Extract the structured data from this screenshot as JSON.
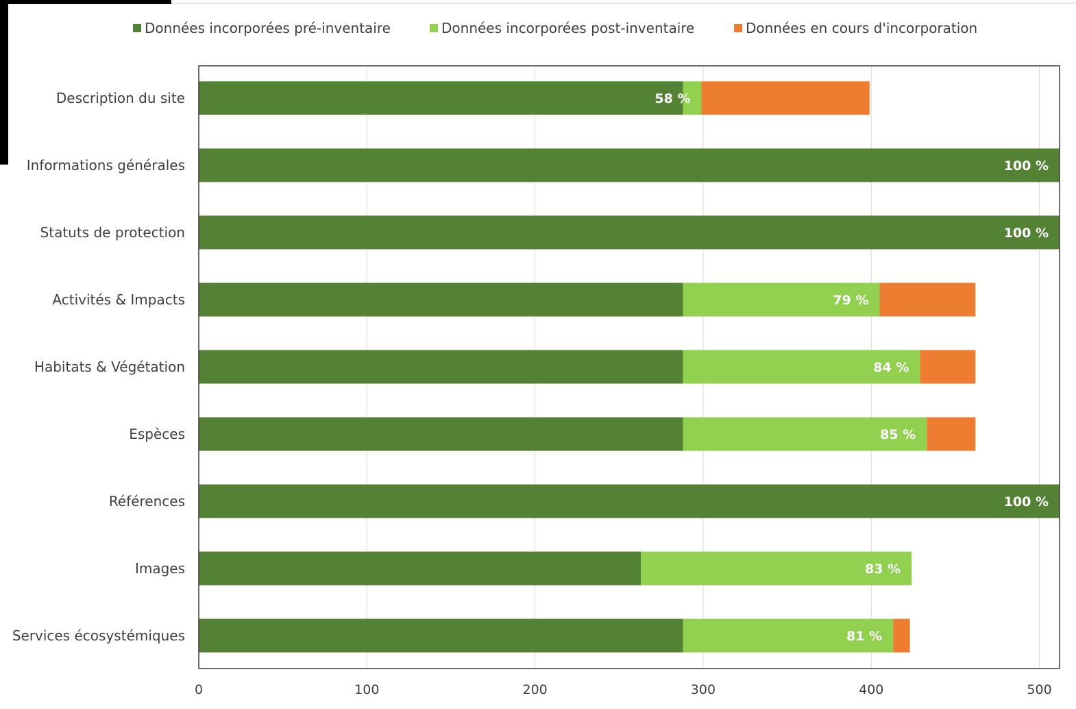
{
  "chart_data": {
    "type": "bar",
    "orientation": "horizontal",
    "stacked": true,
    "legend_position": "top",
    "grid": true,
    "xlim": [
      0,
      512
    ],
    "x_ticks": [
      0,
      100,
      200,
      300,
      400,
      500
    ],
    "categories": [
      "Description du site",
      "Informations générales",
      "Statuts de protection",
      "Activités & Impacts",
      "Habitats & Végétation",
      "Espèces",
      "Références",
      "Images",
      "Services écosystémiques"
    ],
    "series": [
      {
        "name": "Données incorporées pré-inventaire",
        "color": "#548235",
        "values": [
          288,
          512,
          512,
          288,
          288,
          288,
          512,
          263,
          288
        ]
      },
      {
        "name": "Données incorporées post-inventaire",
        "color": "#92d050",
        "values": [
          11,
          0,
          0,
          117,
          141,
          145,
          0,
          161,
          125
        ]
      },
      {
        "name": "Données en cours d'incorporation",
        "color": "#ed7d31",
        "values": [
          100,
          0,
          0,
          57,
          33,
          29,
          0,
          0,
          10
        ]
      }
    ],
    "labels": [
      "58 %",
      "100 %",
      "100 %",
      "79 %",
      "84 %",
      "85 %",
      "100 %",
      "83 %",
      "81 %"
    ]
  }
}
